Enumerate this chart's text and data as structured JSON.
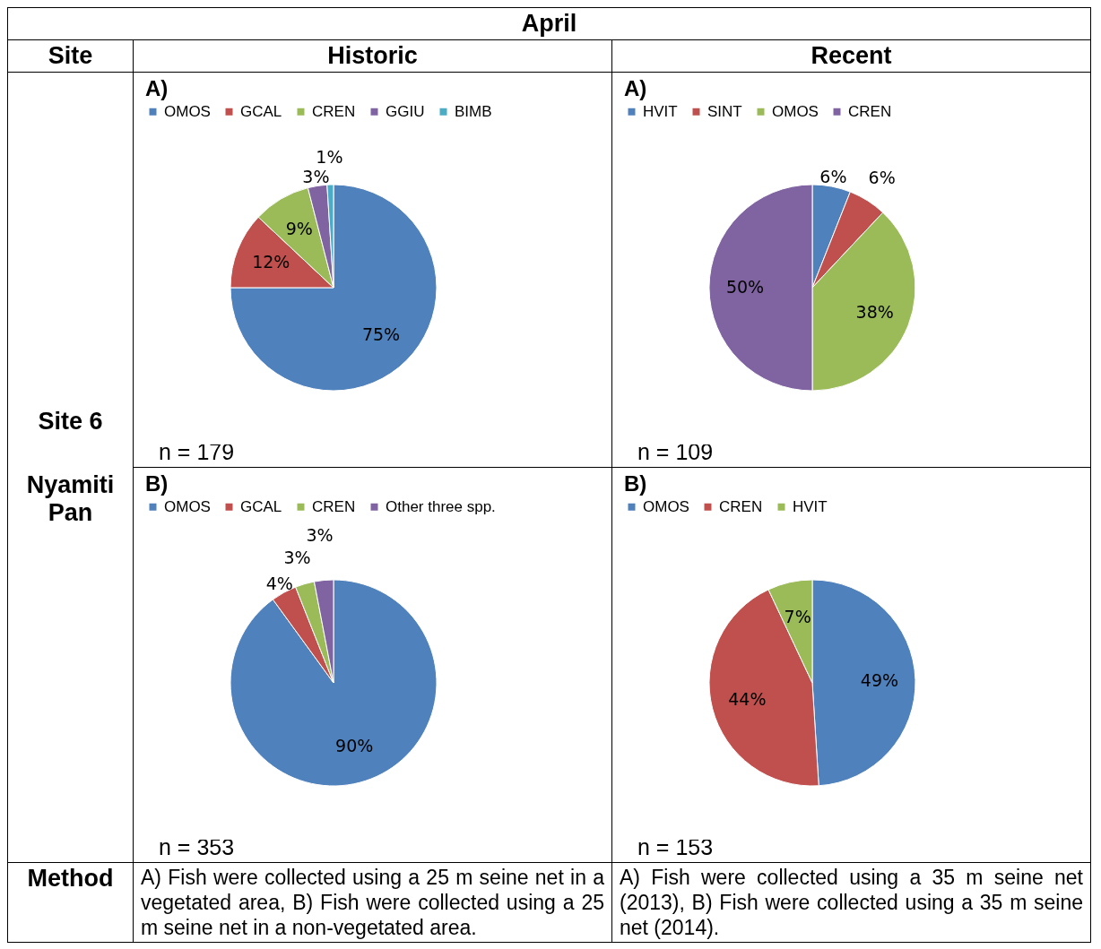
{
  "chart_data": [
    {
      "type": "pie",
      "title": "A)",
      "categories": [
        "OMOS",
        "GCAL",
        "CREN",
        "GGIU",
        "BIMB"
      ],
      "values": [
        75,
        12,
        9,
        3,
        1
      ],
      "value_labels": [
        "75%",
        "12%",
        "9%",
        "3%",
        "1%"
      ],
      "colors": [
        "#4f81bd",
        "#c0504d",
        "#9bbb59",
        "#8064a2",
        "#4bacc6"
      ],
      "legend": "top",
      "annotations": [
        "n = 179"
      ]
    },
    {
      "type": "pie",
      "title": "A)",
      "categories": [
        "HVIT",
        "SINT",
        "OMOS",
        "CREN"
      ],
      "values": [
        6,
        6,
        38,
        50
      ],
      "value_labels": [
        "6%",
        "6%",
        "38%",
        "50%"
      ],
      "colors": [
        "#4f81bd",
        "#c0504d",
        "#9bbb59",
        "#8064a2"
      ],
      "legend": "top",
      "annotations": [
        "n = 109"
      ]
    },
    {
      "type": "pie",
      "title": "B)",
      "categories": [
        "OMOS",
        "GCAL",
        "CREN",
        "Other three spp."
      ],
      "values": [
        90,
        4,
        3,
        3
      ],
      "value_labels": [
        "90%",
        "4%",
        "3%",
        "3%"
      ],
      "colors": [
        "#4f81bd",
        "#c0504d",
        "#9bbb59",
        "#8064a2"
      ],
      "legend": "top",
      "annotations": [
        "n = 353"
      ]
    },
    {
      "type": "pie",
      "title": "B)",
      "categories": [
        "OMOS",
        "CREN",
        "HVIT"
      ],
      "values": [
        49,
        44,
        7
      ],
      "value_labels": [
        "49%",
        "44%",
        "7%"
      ],
      "colors": [
        "#4f81bd",
        "#c0504d",
        "#9bbb59"
      ],
      "legend": "top",
      "annotations": [
        "n = 153"
      ]
    },
    {
      "type": "other",
      "annotations": [
        "April",
        "Site",
        "Historic",
        "Recent",
        "Site 6",
        "Nyamiti Pan",
        "Method",
        "A) Fish were collected using a 25 m seine net in a vegetated area, B) Fish were collected using a 25 m seine net in a non-vegetated area.",
        "A) Fish were collected using a 35 m seine net (2013), B) Fish were collected using a 35 m seine net (2014)."
      ]
    }
  ]
}
